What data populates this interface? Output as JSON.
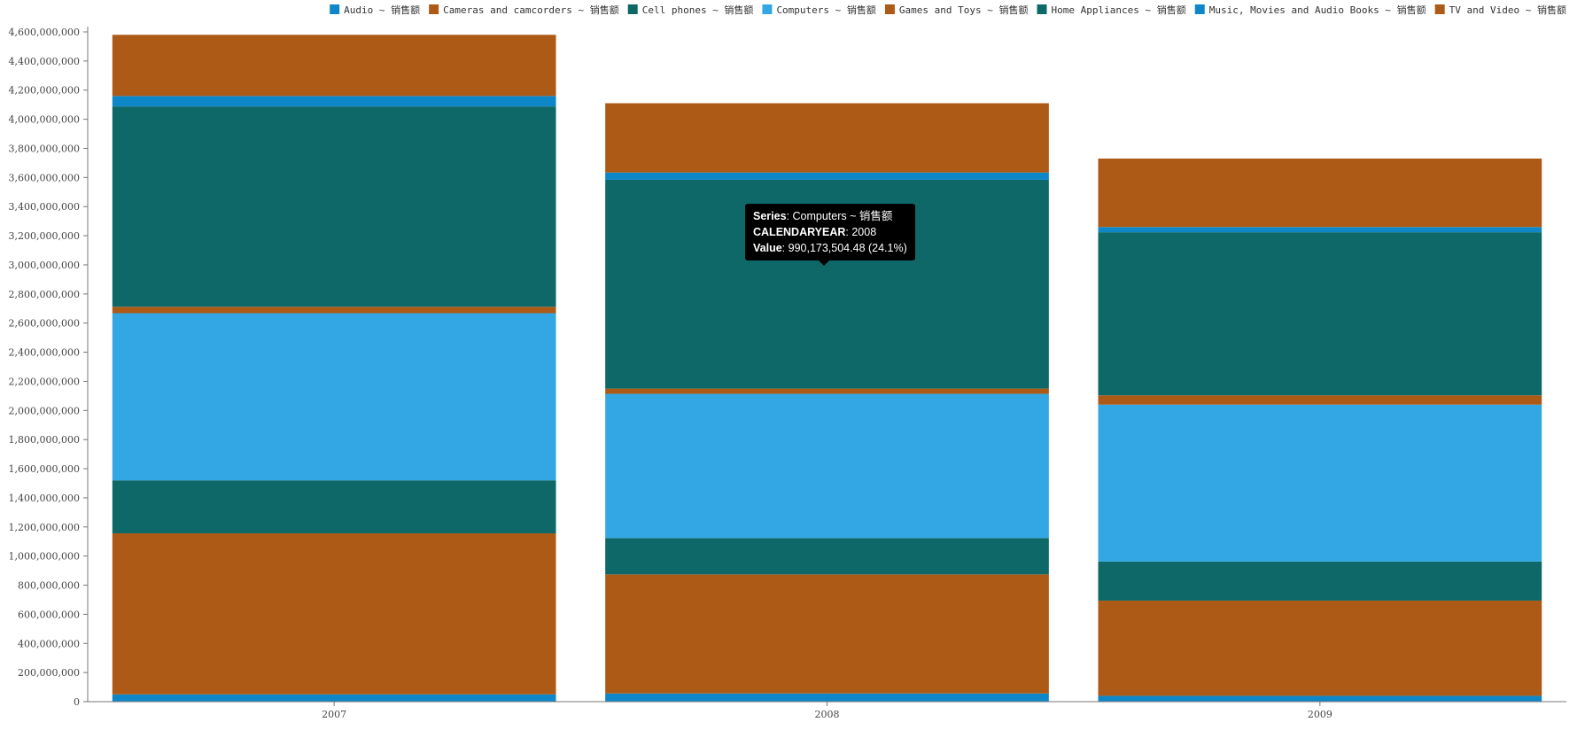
{
  "chart_data": {
    "type": "bar",
    "stacked": true,
    "categories": [
      "2007",
      "2008",
      "2009"
    ],
    "ylim": [
      0,
      4600000000
    ],
    "yticks": [
      {
        "value": 0,
        "label": "0"
      },
      {
        "value": 200000000,
        "label": "200,000,000"
      },
      {
        "value": 400000000,
        "label": "400,000,000"
      },
      {
        "value": 600000000,
        "label": "600,000,000"
      },
      {
        "value": 800000000,
        "label": "800,000,000"
      },
      {
        "value": 1000000000,
        "label": "1,000,000,000"
      },
      {
        "value": 1200000000,
        "label": "1,200,000,000"
      },
      {
        "value": 1400000000,
        "label": "1,400,000,000"
      },
      {
        "value": 1600000000,
        "label": "1,600,000,000"
      },
      {
        "value": 1800000000,
        "label": "1,800,000,000"
      },
      {
        "value": 2000000000,
        "label": "2,000,000,000"
      },
      {
        "value": 2200000000,
        "label": "2,200,000,000"
      },
      {
        "value": 2400000000,
        "label": "2,400,000,000"
      },
      {
        "value": 2600000000,
        "label": "2,600,000,000"
      },
      {
        "value": 2800000000,
        "label": "2,800,000,000"
      },
      {
        "value": 3000000000,
        "label": "3,000,000,000"
      },
      {
        "value": 3200000000,
        "label": "3,200,000,000"
      },
      {
        "value": 3400000000,
        "label": "3,400,000,000"
      },
      {
        "value": 3600000000,
        "label": "3,600,000,000"
      },
      {
        "value": 3800000000,
        "label": "3,800,000,000"
      },
      {
        "value": 4000000000,
        "label": "4,000,000,000"
      },
      {
        "value": 4200000000,
        "label": "4,200,000,000"
      },
      {
        "value": 4400000000,
        "label": "4,400,000,000"
      },
      {
        "value": 4600000000,
        "label": "4,600,000,000"
      }
    ],
    "grid": false,
    "legend_position": "top-right",
    "series": [
      {
        "name": "Audio ~ 销售额",
        "color": "#0e87c9",
        "values": [
          50000000,
          56000000,
          40000000
        ]
      },
      {
        "name": "Cameras and camcorders ~ 销售额",
        "color": "#ad5a16",
        "values": [
          1106000000,
          818000000,
          654000000
        ]
      },
      {
        "name": "Cell phones ~ 销售额",
        "color": "#0e6868",
        "values": [
          364000000,
          250000000,
          268000000
        ]
      },
      {
        "name": "Computers ~ 销售额",
        "color": "#33a7e3",
        "values": [
          1148000000,
          990173504.48,
          1078000000
        ]
      },
      {
        "name": "Games and Toys ~ 销售额",
        "color": "#ad5a16",
        "values": [
          44000000,
          36000000,
          64000000
        ]
      },
      {
        "name": "Home Appliances ~ 销售额",
        "color": "#0e6868",
        "values": [
          1376000000,
          1434000000,
          1120000000
        ]
      },
      {
        "name": "Music, Movies and Audio Books ~ 销售额",
        "color": "#0e87c9",
        "values": [
          72000000,
          50000000,
          36000000
        ]
      },
      {
        "name": "TV and Video ~ 销售额",
        "color": "#ad5a16",
        "values": [
          420000000,
          476000000,
          470000000
        ]
      }
    ]
  },
  "tooltip": {
    "series_key": "Series",
    "series_value": "Computers ~ 销售额",
    "category_key": "CALENDARYEAR",
    "category_value": "2008",
    "value_key": "Value",
    "value_value": "990,173,504.48 (24.1%)"
  }
}
